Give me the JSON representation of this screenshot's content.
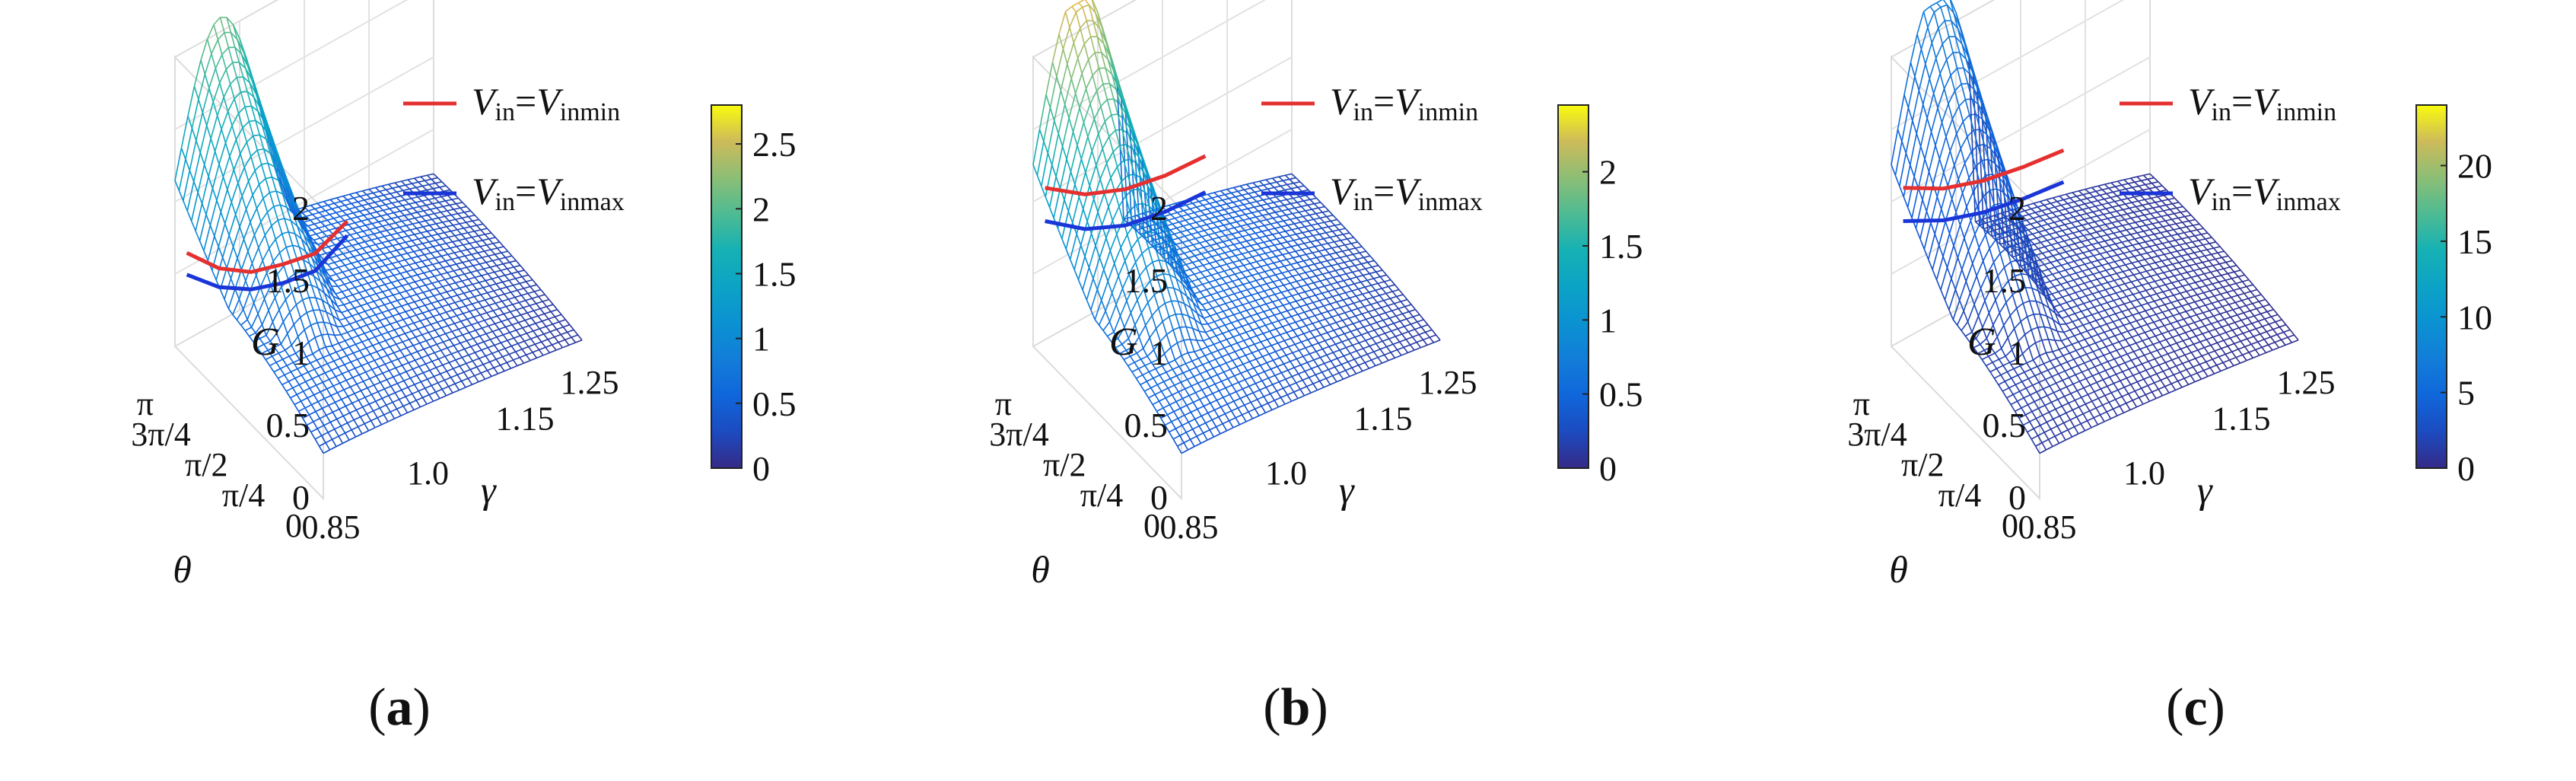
{
  "chart_data": [
    {
      "type": "surface",
      "panel_label": "a",
      "zlabel": "G",
      "xlabel": "θ",
      "ylabel": "γ",
      "z_ticks": [
        "0",
        "0.5",
        "1",
        "1.5",
        "2"
      ],
      "z_range": [
        0,
        2
      ],
      "theta_ticks": [
        "0",
        "π/4",
        "π/2",
        "3π/4",
        "π"
      ],
      "gamma_ticks": [
        "0.85",
        "1.0",
        "1.15",
        "1.25"
      ],
      "gamma_range": [
        0.85,
        1.25
      ],
      "colorbar": {
        "ticks": [
          "0",
          "0.5",
          "1",
          "1.5",
          "2",
          "2.5"
        ],
        "tick_values": [
          0,
          0.5,
          1,
          1.5,
          2,
          2.5
        ],
        "max": 2.8
      },
      "legend": [
        {
          "sub": "in",
          "rhs_sub": "inmin",
          "color": "#e53030"
        },
        {
          "sub": "in",
          "rhs_sub": "inmax",
          "color": "#1a35d8"
        }
      ],
      "cmap_max": 2.8,
      "peak": 2.1,
      "ridge_from": 1.05,
      "curve_min": [
        0.73,
        0.5,
        0.35,
        0.28,
        0.23,
        0.33
      ],
      "curve_max": [
        0.58,
        0.37,
        0.23,
        0.15,
        0.11,
        0.23
      ]
    },
    {
      "type": "surface",
      "panel_label": "b",
      "zlabel": "G",
      "xlabel": "θ",
      "ylabel": "γ",
      "z_ticks": [
        "0",
        "0.5",
        "1",
        "1.5",
        "2"
      ],
      "z_range": [
        0,
        2
      ],
      "theta_ticks": [
        "0",
        "π/4",
        "π/2",
        "3π/4",
        "π"
      ],
      "gamma_ticks": [
        "0.85",
        "1.0",
        "1.15",
        "1.25"
      ],
      "gamma_range": [
        0.85,
        1.25
      ],
      "colorbar": {
        "ticks": [
          "0",
          "0.5",
          "1",
          "1.5",
          "2"
        ],
        "tick_values": [
          0,
          0.5,
          1,
          1.5,
          2
        ],
        "max": 2.45
      },
      "legend": [
        {
          "sub": "in",
          "rhs_sub": "inmin",
          "color": "#e53030"
        },
        {
          "sub": "in",
          "rhs_sub": "inmax",
          "color": "#1a35d8"
        }
      ],
      "cmap_max": 2.45,
      "peak": 2.3,
      "ridge_from": 0.98,
      "curve_min": [
        1.18,
        0.98,
        0.86,
        0.8,
        0.78
      ],
      "curve_max": [
        0.95,
        0.74,
        0.61,
        0.55,
        0.53
      ]
    },
    {
      "type": "surface",
      "panel_label": "c",
      "zlabel": "G",
      "xlabel": "θ",
      "ylabel": "γ",
      "z_ticks": [
        "0",
        "0.5",
        "1",
        "1.5",
        "2"
      ],
      "z_range": [
        0,
        2
      ],
      "theta_ticks": [
        "0",
        "π/4",
        "π/2",
        "3π/4",
        "π"
      ],
      "gamma_ticks": [
        "0.85",
        "1.0",
        "1.15",
        "1.25"
      ],
      "gamma_range": [
        0.85,
        1.25
      ],
      "colorbar": {
        "ticks": [
          "0",
          "5",
          "10",
          "15",
          "20"
        ],
        "tick_values": [
          0,
          5,
          10,
          15,
          20
        ],
        "max": 24
      },
      "legend": [
        {
          "sub": "in",
          "rhs_sub": "inmin",
          "color": "#e53030"
        },
        {
          "sub": "in",
          "rhs_sub": "inmax",
          "color": "#1a35d8"
        }
      ],
      "cmap_max": 24,
      "peak": 2.3,
      "ridge_from": 0.97,
      "curve_min": [
        1.18,
        1.02,
        0.92,
        0.86,
        0.82
      ],
      "curve_max": [
        0.95,
        0.8,
        0.7,
        0.64,
        0.6
      ]
    }
  ]
}
